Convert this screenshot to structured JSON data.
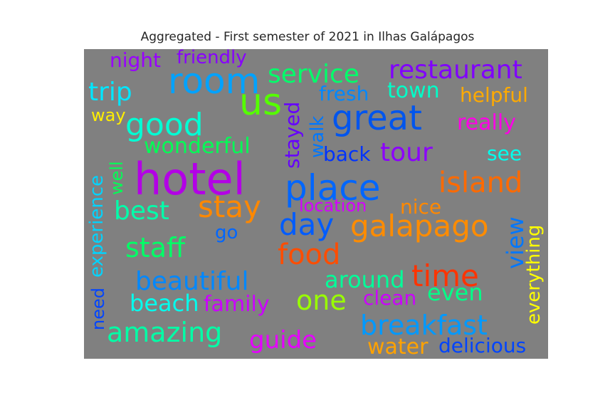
{
  "chart_data": {
    "type": "wordcloud",
    "title": "Aggregated - First semester of 2021 in Ilhas Galápagos",
    "background": "#808080",
    "words": [
      {
        "text": "hotel",
        "color": "#b300e6"
      },
      {
        "text": "room",
        "color": "#00a2ff"
      },
      {
        "text": "place",
        "color": "#0066ff"
      },
      {
        "text": "us",
        "color": "#55ff00"
      },
      {
        "text": "great",
        "color": "#0055ee"
      },
      {
        "text": "good",
        "color": "#00ffd4"
      },
      {
        "text": "island",
        "color": "#ff6a00"
      },
      {
        "text": "stay",
        "color": "#ff8800"
      },
      {
        "text": "galapago",
        "color": "#ff8c00"
      },
      {
        "text": "day",
        "color": "#005cff"
      },
      {
        "text": "time",
        "color": "#ff3300"
      },
      {
        "text": "food",
        "color": "#ff4d00"
      },
      {
        "text": "breakfast",
        "color": "#0099ff"
      },
      {
        "text": "service",
        "color": "#00ff6a"
      },
      {
        "text": "restaurant",
        "color": "#8000ff"
      },
      {
        "text": "staff",
        "color": "#00ff66"
      },
      {
        "text": "beautiful",
        "color": "#0088ff"
      },
      {
        "text": "best",
        "color": "#00ffaa"
      },
      {
        "text": "amazing",
        "color": "#00ffa6"
      },
      {
        "text": "one",
        "color": "#99ff00"
      },
      {
        "text": "trip",
        "color": "#00e6ff"
      },
      {
        "text": "tour",
        "color": "#8c00ff"
      },
      {
        "text": "wonderful",
        "color": "#00ff55"
      },
      {
        "text": "beach",
        "color": "#00ffee"
      },
      {
        "text": "guide",
        "color": "#e600ff"
      },
      {
        "text": "around",
        "color": "#00ff99"
      },
      {
        "text": "view",
        "color": "#0077ff"
      },
      {
        "text": "family",
        "color": "#cc00ff"
      },
      {
        "text": "even",
        "color": "#00ff88"
      },
      {
        "text": "water",
        "color": "#ffa200"
      },
      {
        "text": "delicious",
        "color": "#0044ff"
      },
      {
        "text": "town",
        "color": "#00ffc8"
      },
      {
        "text": "helpful",
        "color": "#ffaa00"
      },
      {
        "text": "really",
        "color": "#ff00e6"
      },
      {
        "text": "night",
        "color": "#9900ff"
      },
      {
        "text": "friendly",
        "color": "#8800ff"
      },
      {
        "text": "fresh",
        "color": "#0088ff"
      },
      {
        "text": "see",
        "color": "#00ffee"
      },
      {
        "text": "back",
        "color": "#0033ff"
      },
      {
        "text": "stayed",
        "color": "#6600ff"
      },
      {
        "text": "walk",
        "color": "#0077ff"
      },
      {
        "text": "nice",
        "color": "#ff8800"
      },
      {
        "text": "location",
        "color": "#d400ff"
      },
      {
        "text": "clean",
        "color": "#cc00ff"
      },
      {
        "text": "go",
        "color": "#0066ff"
      },
      {
        "text": "experience",
        "color": "#00d4ff"
      },
      {
        "text": "well",
        "color": "#00ff55"
      },
      {
        "text": "everything",
        "color": "#ffff00"
      },
      {
        "text": "need",
        "color": "#0044ff"
      },
      {
        "text": "way",
        "color": "#ffee00"
      }
    ]
  }
}
